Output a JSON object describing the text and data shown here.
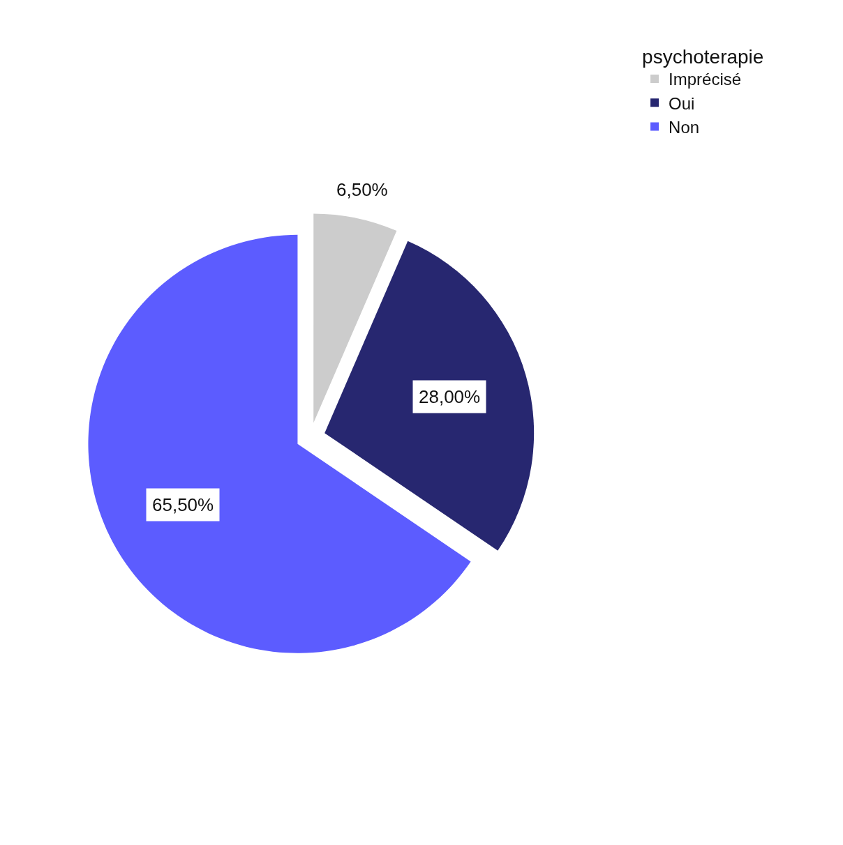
{
  "chart_data": {
    "type": "pie",
    "legend_title": "psychoterapie",
    "legend": "top right",
    "categories": [
      "Imprécisé",
      "Oui",
      "Non"
    ],
    "values": [
      6.5,
      28.0,
      65.5
    ],
    "colors": [
      "#cccccc",
      "#272770",
      "#5c5cff"
    ],
    "value_labels": [
      "6,50%",
      "28,00%",
      "65,50%"
    ]
  }
}
